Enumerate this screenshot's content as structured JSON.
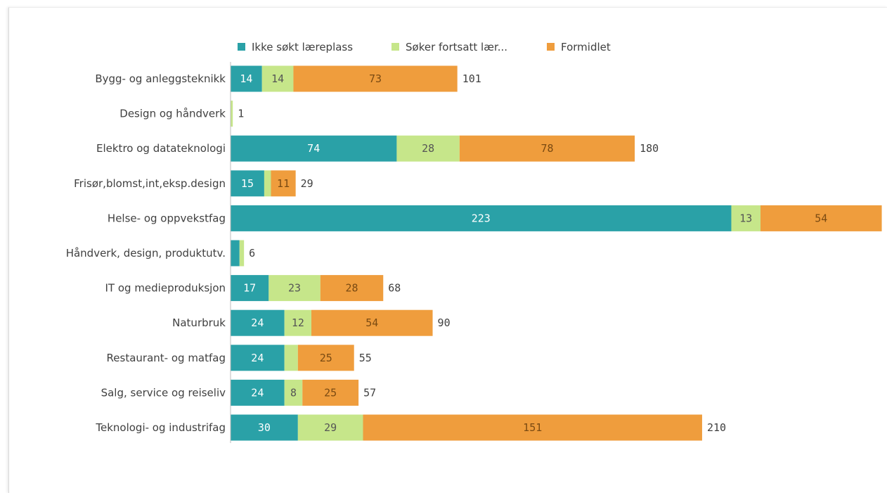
{
  "colors": {
    "ikke_sokt": "#2aa1a7",
    "soker_fortsatt": "#c6e68a",
    "formidlet": "#ef9d3d",
    "axis": "#bbbbbb",
    "label_on_teal": "#ffffff",
    "label_on_light": "#555555",
    "label_on_orange": "#7a4a12"
  },
  "chart_data": {
    "type": "bar",
    "orientation": "horizontal",
    "stacked": true,
    "legend_position": "top",
    "grid": false,
    "xlim": [
      0,
      290
    ],
    "categories": [
      "Bygg- og anleggsteknikk",
      "Design og håndverk",
      "Elektro og datateknologi",
      "Frisør,blomst,int,eksp.design",
      "Helse- og oppvekstfag",
      "Håndverk, design, produktutv.",
      "IT og medieproduksjon",
      "Naturbruk",
      "Restaurant- og matfag",
      "Salg, service og reiseliv",
      "Teknologi- og industrifag"
    ],
    "series": [
      {
        "name": "Ikke søkt læreplass",
        "color_key": "ikke_sokt",
        "values": [
          14,
          0,
          74,
          15,
          223,
          4,
          17,
          24,
          24,
          24,
          30
        ],
        "labels": [
          "14",
          "",
          "74",
          "15",
          "223",
          "",
          "17",
          "24",
          "24",
          "24",
          "30"
        ]
      },
      {
        "name": "Søker fortsatt lær...",
        "color_key": "soker_fortsatt",
        "values": [
          14,
          1,
          28,
          3,
          13,
          2,
          23,
          12,
          6,
          8,
          29
        ],
        "labels": [
          "14",
          "",
          "28",
          "",
          "13",
          "",
          "23",
          "12",
          "",
          "8",
          "29"
        ]
      },
      {
        "name": "Formidlet",
        "color_key": "formidlet",
        "values": [
          73,
          0,
          78,
          11,
          54,
          0,
          28,
          54,
          25,
          25,
          151
        ],
        "labels": [
          "73",
          "",
          "78",
          "11",
          "54",
          "",
          "28",
          "54",
          "25",
          "25",
          "151"
        ]
      }
    ],
    "totals": [
      "101",
      "1",
      "180",
      "29",
      "290",
      "6",
      "68",
      "90",
      "55",
      "57",
      "210"
    ],
    "show_total": [
      true,
      true,
      true,
      true,
      false,
      true,
      true,
      true,
      true,
      true,
      true
    ]
  }
}
